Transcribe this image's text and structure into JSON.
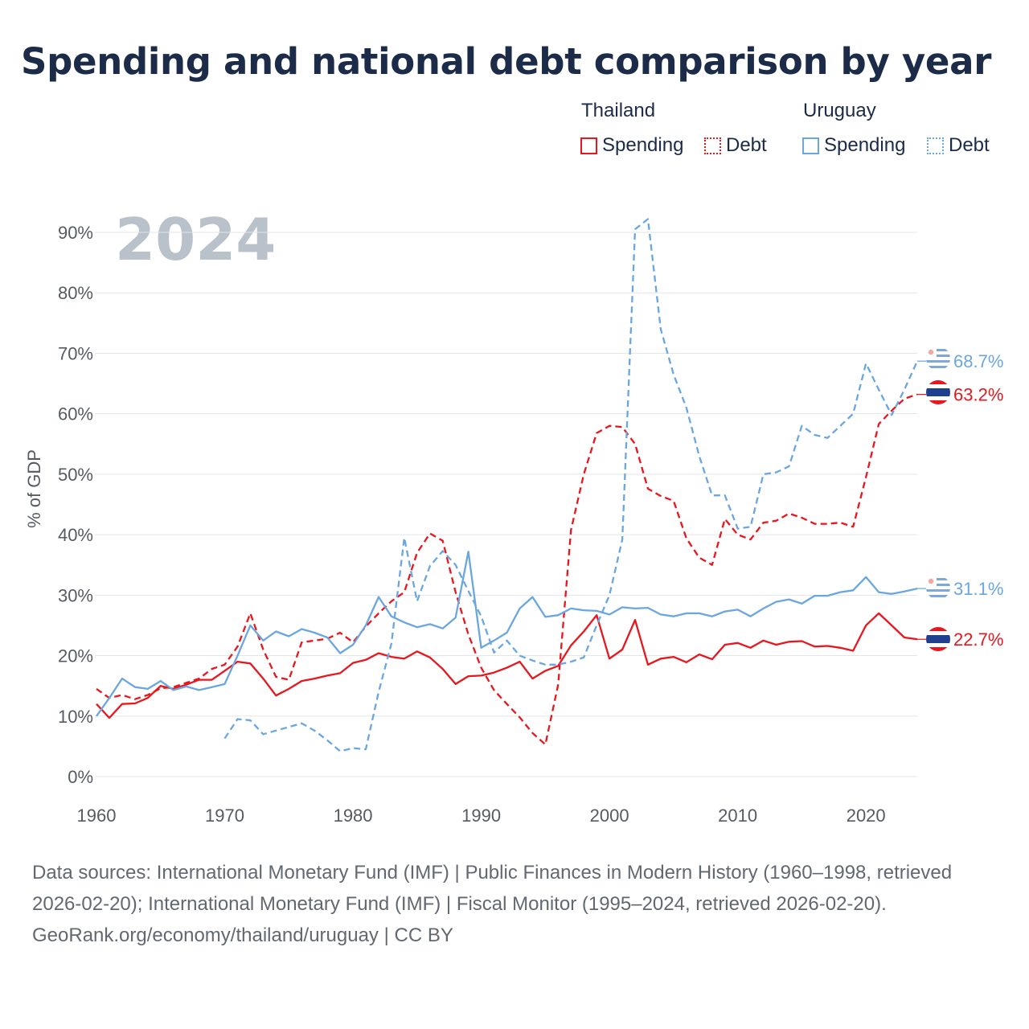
{
  "title": "Spending and national debt comparison by year",
  "legend": {
    "thailand": {
      "name": "Thailand",
      "spending": "Spending",
      "debt": "Debt"
    },
    "uruguay": {
      "name": "Uruguay",
      "spending": "Spending",
      "debt": "Debt"
    }
  },
  "colors": {
    "thailand": "#e8161d",
    "uruguay": "#6aa6e0",
    "grid": "#e3e5e8",
    "year_watermark": "#b9c1cb"
  },
  "chart_data": {
    "type": "line",
    "year_watermark": "2024",
    "ylabel": "% of GDP",
    "xlim": [
      1960,
      2024
    ],
    "ylim": [
      0,
      90
    ],
    "x_ticks": [
      1960,
      1970,
      1980,
      1990,
      2000,
      2010,
      2020
    ],
    "y_ticks": [
      "0%",
      "10%",
      "20%",
      "30%",
      "40%",
      "50%",
      "60%",
      "70%",
      "80%",
      "90%"
    ],
    "series": [
      {
        "name": "Thailand Spending",
        "country": "thailand",
        "style": "solid",
        "end_label": "22.7%",
        "points": [
          [
            1960,
            12
          ],
          [
            1961,
            9.7
          ],
          [
            1962,
            12
          ],
          [
            1963,
            12.1
          ],
          [
            1964,
            13
          ],
          [
            1965,
            15
          ],
          [
            1966,
            14.5
          ],
          [
            1967,
            15.2
          ],
          [
            1968,
            16
          ],
          [
            1969,
            16
          ],
          [
            1970,
            17.5
          ],
          [
            1971,
            19
          ],
          [
            1972,
            18.7
          ],
          [
            1973,
            16.2
          ],
          [
            1974,
            13.4
          ],
          [
            1975,
            14.5
          ],
          [
            1976,
            15.8
          ],
          [
            1977,
            16.2
          ],
          [
            1978,
            16.7
          ],
          [
            1979,
            17.1
          ],
          [
            1980,
            18.8
          ],
          [
            1981,
            19.3
          ],
          [
            1982,
            20.4
          ],
          [
            1983,
            19.8
          ],
          [
            1984,
            19.5
          ],
          [
            1985,
            20.7
          ],
          [
            1986,
            19.7
          ],
          [
            1987,
            17.8
          ],
          [
            1988,
            15.3
          ],
          [
            1989,
            16.6
          ],
          [
            1990,
            16.7
          ],
          [
            1991,
            17.2
          ],
          [
            1992,
            18
          ],
          [
            1993,
            19
          ],
          [
            1994,
            16.2
          ],
          [
            1995,
            17.5
          ],
          [
            1996,
            18.3
          ],
          [
            1997,
            21.7
          ],
          [
            1998,
            24
          ],
          [
            1999,
            26.7
          ],
          [
            2000,
            19.5
          ],
          [
            2001,
            21
          ],
          [
            2002,
            25.9
          ],
          [
            2003,
            18.5
          ],
          [
            2004,
            19.5
          ],
          [
            2005,
            19.8
          ],
          [
            2006,
            18.9
          ],
          [
            2007,
            20.2
          ],
          [
            2008,
            19.4
          ],
          [
            2009,
            21.8
          ],
          [
            2010,
            22.1
          ],
          [
            2011,
            21.3
          ],
          [
            2012,
            22.5
          ],
          [
            2013,
            21.8
          ],
          [
            2014,
            22.3
          ],
          [
            2015,
            22.4
          ],
          [
            2016,
            21.5
          ],
          [
            2017,
            21.6
          ],
          [
            2018,
            21.3
          ],
          [
            2019,
            20.8
          ],
          [
            2020,
            25
          ],
          [
            2021,
            27
          ],
          [
            2022,
            25
          ],
          [
            2023,
            23
          ],
          [
            2024,
            22.7
          ]
        ]
      },
      {
        "name": "Thailand Debt",
        "country": "thailand",
        "style": "dashed",
        "end_label": "63.2%",
        "points": [
          [
            1960,
            14.5
          ],
          [
            1961,
            13
          ],
          [
            1962,
            13.5
          ],
          [
            1963,
            12.8
          ],
          [
            1964,
            13.5
          ],
          [
            1965,
            14.6
          ],
          [
            1966,
            14.8
          ],
          [
            1967,
            15.5
          ],
          [
            1968,
            16.2
          ],
          [
            1969,
            17.8
          ],
          [
            1970,
            18.5
          ],
          [
            1971,
            21.5
          ],
          [
            1972,
            27
          ],
          [
            1973,
            21
          ],
          [
            1974,
            16.5
          ],
          [
            1975,
            16
          ],
          [
            1976,
            22.2
          ],
          [
            1977,
            22.5
          ],
          [
            1978,
            22.8
          ],
          [
            1979,
            23.8
          ],
          [
            1980,
            22.2
          ],
          [
            1981,
            24.8
          ],
          [
            1982,
            27
          ],
          [
            1983,
            29
          ],
          [
            1984,
            30.5
          ],
          [
            1985,
            37
          ],
          [
            1986,
            40.2
          ],
          [
            1987,
            39
          ],
          [
            1988,
            30.5
          ],
          [
            1989,
            23.5
          ],
          [
            1990,
            18
          ],
          [
            1991,
            14.3
          ],
          [
            1992,
            12
          ],
          [
            1993,
            9.8
          ],
          [
            1994,
            7.2
          ],
          [
            1995,
            5.3
          ],
          [
            1996,
            15.2
          ],
          [
            1997,
            40.8
          ],
          [
            1998,
            50
          ],
          [
            1999,
            56.8
          ],
          [
            2000,
            58
          ],
          [
            2001,
            57.8
          ],
          [
            2002,
            55
          ],
          [
            2003,
            47.6
          ],
          [
            2004,
            46.4
          ],
          [
            2005,
            45.6
          ],
          [
            2006,
            39.4
          ],
          [
            2007,
            36.2
          ],
          [
            2008,
            35
          ],
          [
            2009,
            42.6
          ],
          [
            2010,
            40
          ],
          [
            2011,
            39.2
          ],
          [
            2012,
            42
          ],
          [
            2013,
            42.3
          ],
          [
            2014,
            43.5
          ],
          [
            2015,
            42.8
          ],
          [
            2016,
            41.8
          ],
          [
            2017,
            41.8
          ],
          [
            2018,
            42
          ],
          [
            2019,
            41.3
          ],
          [
            2020,
            49.5
          ],
          [
            2021,
            58.3
          ],
          [
            2022,
            60.5
          ],
          [
            2023,
            62.5
          ],
          [
            2024,
            63.2
          ]
        ]
      },
      {
        "name": "Uruguay Spending",
        "country": "uruguay",
        "style": "solid",
        "end_label": "31.1%",
        "points": [
          [
            1960,
            10
          ],
          [
            1961,
            13
          ],
          [
            1962,
            16.2
          ],
          [
            1963,
            14.8
          ],
          [
            1964,
            14.5
          ],
          [
            1965,
            15.8
          ],
          [
            1966,
            14.3
          ],
          [
            1967,
            14.9
          ],
          [
            1968,
            14.3
          ],
          [
            1969,
            14.8
          ],
          [
            1970,
            15.3
          ],
          [
            1971,
            20
          ],
          [
            1972,
            25
          ],
          [
            1973,
            22.5
          ],
          [
            1974,
            24
          ],
          [
            1975,
            23.2
          ],
          [
            1976,
            24.4
          ],
          [
            1977,
            23.8
          ],
          [
            1978,
            23
          ],
          [
            1979,
            20.4
          ],
          [
            1980,
            21.8
          ],
          [
            1981,
            25
          ],
          [
            1982,
            29.7
          ],
          [
            1983,
            26.5
          ],
          [
            1984,
            25.5
          ],
          [
            1985,
            24.7
          ],
          [
            1986,
            25.2
          ],
          [
            1987,
            24.5
          ],
          [
            1988,
            26.3
          ],
          [
            1989,
            37.2
          ],
          [
            1990,
            21.3
          ],
          [
            1991,
            22.5
          ],
          [
            1992,
            23.8
          ],
          [
            1993,
            27.8
          ],
          [
            1994,
            29.7
          ],
          [
            1995,
            26.4
          ],
          [
            1996,
            26.7
          ],
          [
            1997,
            27.8
          ],
          [
            1998,
            27.5
          ],
          [
            1999,
            27.4
          ],
          [
            2000,
            26.8
          ],
          [
            2001,
            28
          ],
          [
            2002,
            27.8
          ],
          [
            2003,
            27.9
          ],
          [
            2004,
            26.8
          ],
          [
            2005,
            26.5
          ],
          [
            2006,
            27
          ],
          [
            2007,
            27
          ],
          [
            2008,
            26.5
          ],
          [
            2009,
            27.3
          ],
          [
            2010,
            27.6
          ],
          [
            2011,
            26.5
          ],
          [
            2012,
            27.8
          ],
          [
            2013,
            28.9
          ],
          [
            2014,
            29.3
          ],
          [
            2015,
            28.6
          ],
          [
            2016,
            29.9
          ],
          [
            2017,
            29.9
          ],
          [
            2018,
            30.5
          ],
          [
            2019,
            30.8
          ],
          [
            2020,
            33
          ],
          [
            2021,
            30.5
          ],
          [
            2022,
            30.2
          ],
          [
            2023,
            30.6
          ],
          [
            2024,
            31.1
          ]
        ]
      },
      {
        "name": "Uruguay Debt",
        "country": "uruguay",
        "style": "dashed",
        "end_label": "68.7%",
        "points": [
          [
            1970,
            6.3
          ],
          [
            1971,
            9.5
          ],
          [
            1972,
            9.3
          ],
          [
            1973,
            7
          ],
          [
            1974,
            7.6
          ],
          [
            1975,
            8.2
          ],
          [
            1976,
            8.8
          ],
          [
            1977,
            7.6
          ],
          [
            1978,
            6
          ],
          [
            1979,
            4.2
          ],
          [
            1980,
            4.7
          ],
          [
            1981,
            4.5
          ],
          [
            1982,
            14
          ],
          [
            1983,
            22
          ],
          [
            1984,
            39.5
          ],
          [
            1985,
            29
          ],
          [
            1986,
            34.8
          ],
          [
            1987,
            37.3
          ],
          [
            1988,
            35
          ],
          [
            1989,
            30.7
          ],
          [
            1990,
            26.5
          ],
          [
            1991,
            20.5
          ],
          [
            1992,
            22.5
          ],
          [
            1993,
            20
          ],
          [
            1994,
            19.2
          ],
          [
            1995,
            18.5
          ],
          [
            1996,
            18.5
          ],
          [
            1997,
            19
          ],
          [
            1998,
            19.7
          ],
          [
            1999,
            25
          ],
          [
            2000,
            30
          ],
          [
            2001,
            39.2
          ],
          [
            2002,
            90.5
          ],
          [
            2003,
            92.2
          ],
          [
            2004,
            74
          ],
          [
            2005,
            66.5
          ],
          [
            2006,
            61
          ],
          [
            2007,
            53
          ],
          [
            2008,
            46.5
          ],
          [
            2009,
            46.5
          ],
          [
            2010,
            41
          ],
          [
            2011,
            41.3
          ],
          [
            2012,
            50
          ],
          [
            2013,
            50.3
          ],
          [
            2014,
            51.3
          ],
          [
            2015,
            58
          ],
          [
            2016,
            56.5
          ],
          [
            2017,
            56
          ],
          [
            2018,
            58
          ],
          [
            2019,
            60
          ],
          [
            2020,
            68.3
          ],
          [
            2021,
            64
          ],
          [
            2022,
            59.8
          ],
          [
            2023,
            64
          ],
          [
            2024,
            68.7
          ]
        ]
      }
    ]
  },
  "footer": {
    "sources": "Data sources: International Monetary Fund (IMF) | Public Finances in Modern History (1960–1998, retrieved 2026-02-20); International Monetary Fund (IMF) | Fiscal Monitor (1995–2024, retrieved 2026-02-20).",
    "credit": "GeoRank.org/economy/thailand/uruguay | CC BY"
  }
}
